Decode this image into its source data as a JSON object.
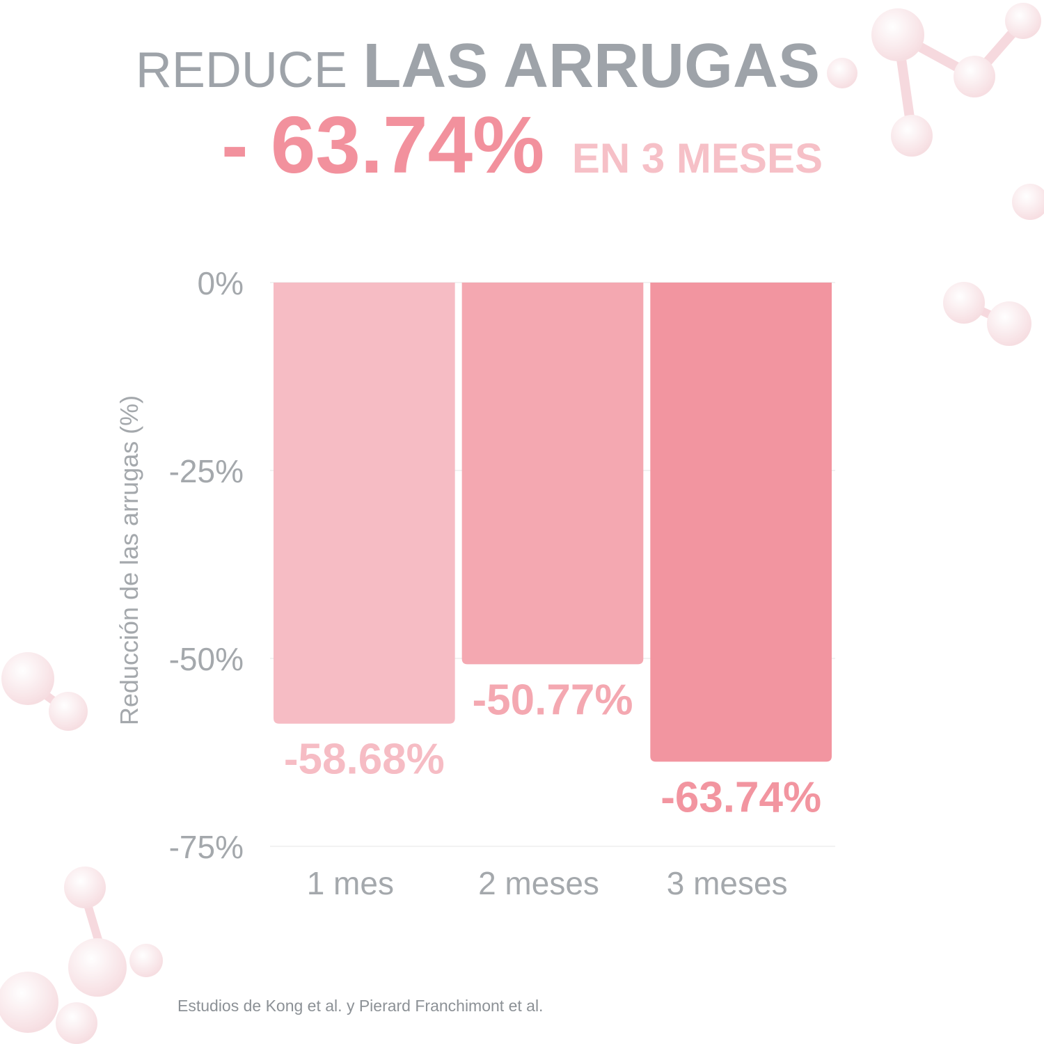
{
  "chart_data": {
    "type": "bar",
    "title": "REDUCE",
    "title_emphasis": "LAS ARRUGAS",
    "headline": "- 63.74%",
    "subtitle": "EN 3 MESES",
    "y_label": "Reducción de las arrugas (%)",
    "categories": [
      "1 mes",
      "2 meses",
      "3 meses"
    ],
    "values": [
      -58.68,
      -50.77,
      -63.74
    ],
    "value_labels": [
      "-58.68%",
      "-50.77%",
      "-63.74%"
    ],
    "colors": [
      "#f6bcc4",
      "#f4a8b1",
      "#f295a0"
    ],
    "ylim": [
      -75,
      0
    ],
    "yticks": [
      {
        "value": 0,
        "label": "0%"
      },
      {
        "value": -25,
        "label": "-25%"
      },
      {
        "value": -50,
        "label": "-50%"
      },
      {
        "value": -75,
        "label": "-75%"
      }
    ],
    "grid": true,
    "footnote": "Estudios de Kong et al. y Pierard Franchimont et al."
  }
}
